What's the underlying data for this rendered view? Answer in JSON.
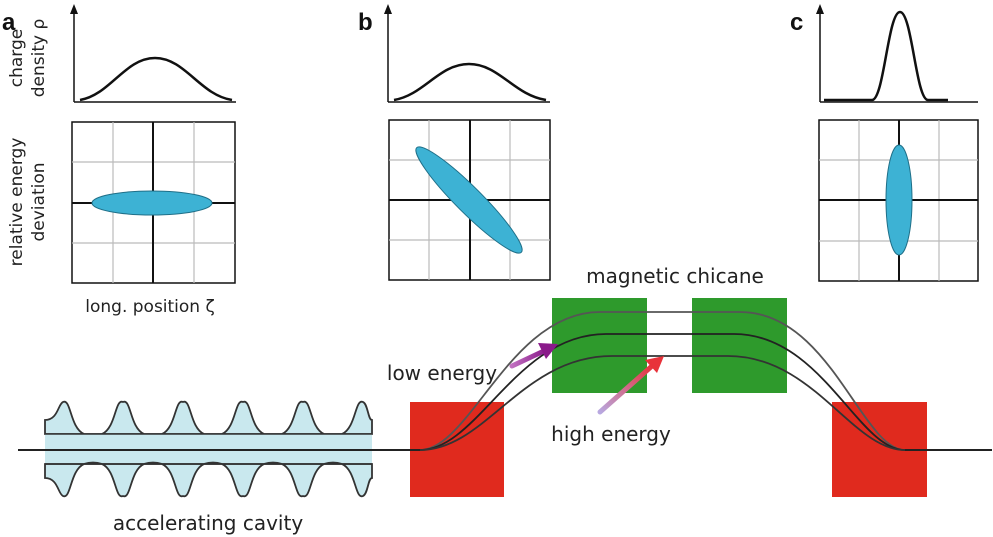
{
  "panels": {
    "a": {
      "letter": "a"
    },
    "b": {
      "letter": "b"
    },
    "c": {
      "letter": "c"
    }
  },
  "axis_labels": {
    "charge_density_line1": "charge",
    "charge_density_line2": "density ρ",
    "energy_line1": "relative energy",
    "energy_line2": "deviation",
    "position": "long. position ζ"
  },
  "labels": {
    "magnetic_chicane": "magnetic chicane",
    "low_energy": "low energy",
    "high_energy": "high energy",
    "accelerating_cavity": "accelerating cavity"
  },
  "colors": {
    "ellipse_fill": "#3db2d4",
    "dipole_red": "#e02a1e",
    "dipole_green": "#2e9a2c",
    "cavity_fill": "#c9e8ee",
    "arrow_low": "#8a1a8a",
    "arrow_high": "#e8323a"
  }
}
